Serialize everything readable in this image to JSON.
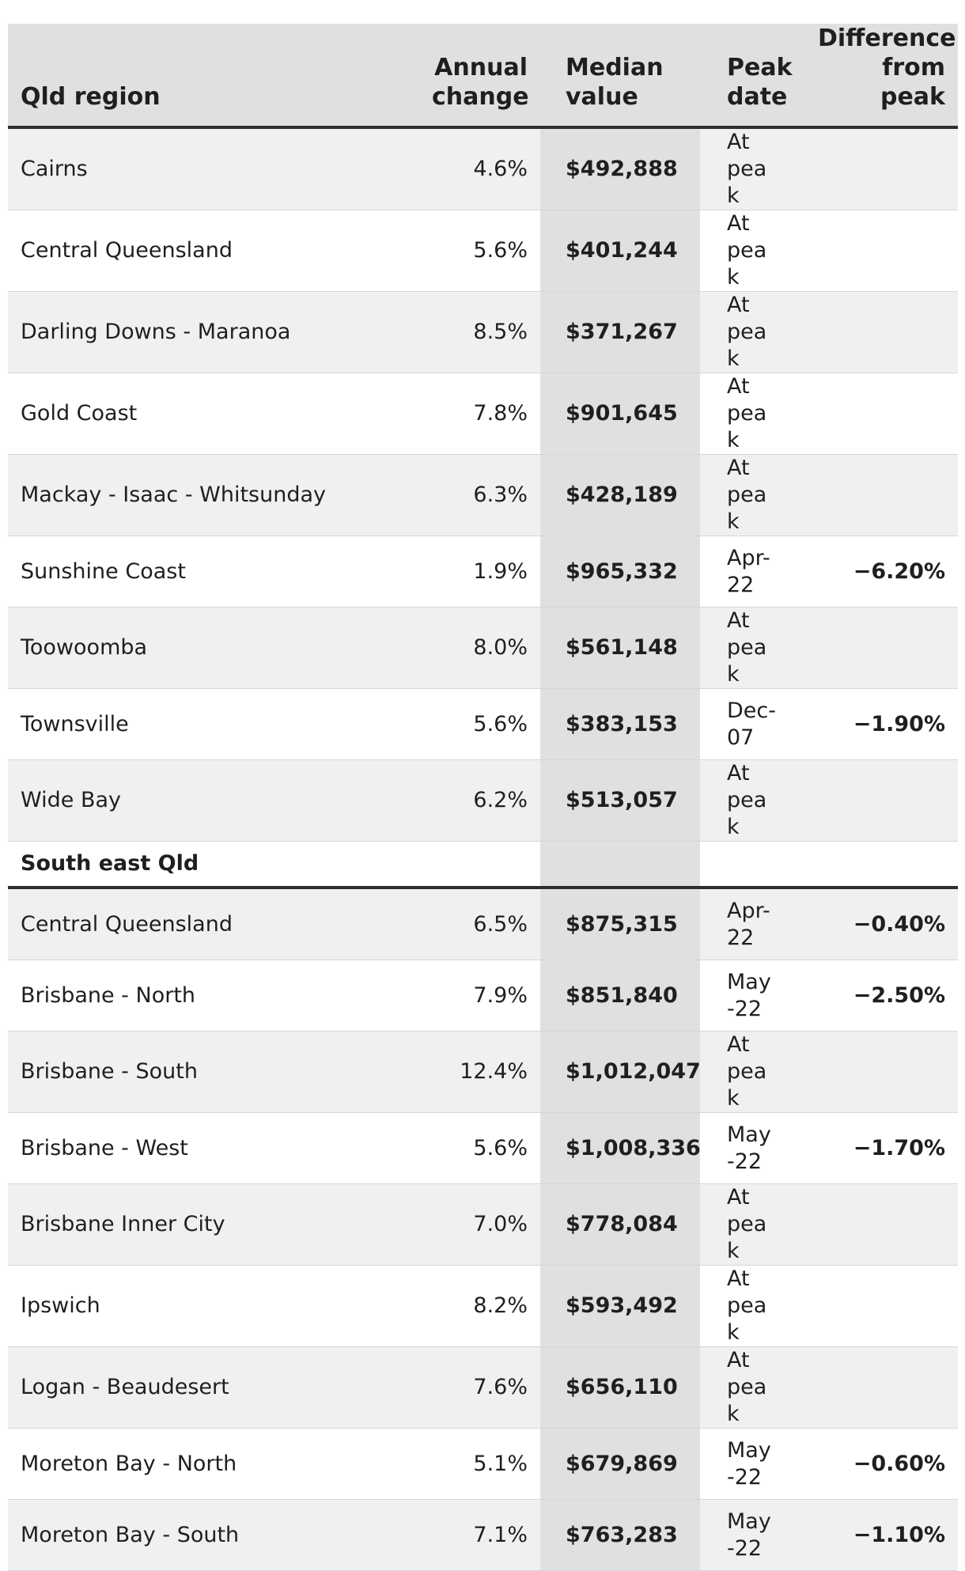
{
  "chart_data": {
    "type": "table",
    "columns": [
      "Qld region",
      "Annual change",
      "Median value",
      "Peak date",
      "Difference from peak"
    ],
    "groups": [
      {
        "heading": "",
        "rows": [
          {
            "region": "Cairns",
            "change": "4.6%",
            "median": "$492,888",
            "peak": "At peak",
            "diff": ""
          },
          {
            "region": "Central Queensland",
            "change": "5.6%",
            "median": "$401,244",
            "peak": "At peak",
            "diff": ""
          },
          {
            "region": "Darling Downs - Maranoa",
            "change": "8.5%",
            "median": "$371,267",
            "peak": "At peak",
            "diff": ""
          },
          {
            "region": "Gold Coast",
            "change": "7.8%",
            "median": "$901,645",
            "peak": "At peak",
            "diff": ""
          },
          {
            "region": "Mackay - Isaac - Whitsunday",
            "change": "6.3%",
            "median": "$428,189",
            "peak": "At peak",
            "diff": ""
          },
          {
            "region": "Sunshine Coast",
            "change": "1.9%",
            "median": "$965,332",
            "peak": "Apr-22",
            "diff": "−6.20%"
          },
          {
            "region": "Toowoomba",
            "change": "8.0%",
            "median": "$561,148",
            "peak": "At peak",
            "diff": ""
          },
          {
            "region": "Townsville",
            "change": "5.6%",
            "median": "$383,153",
            "peak": "Dec-07",
            "diff": "−1.90%"
          },
          {
            "region": "Wide Bay",
            "change": "6.2%",
            "median": "$513,057",
            "peak": "At peak",
            "diff": ""
          }
        ]
      },
      {
        "heading": "South east Qld",
        "rows": [
          {
            "region": "Central Queensland",
            "change": "6.5%",
            "median": "$875,315",
            "peak": "Apr-22",
            "diff": "−0.40%"
          },
          {
            "region": "Brisbane - North",
            "change": "7.9%",
            "median": "$851,840",
            "peak": "May-22",
            "diff": "−2.50%"
          },
          {
            "region": "Brisbane - South",
            "change": "12.4%",
            "median": "$1,012,047",
            "peak": "At peak",
            "diff": ""
          },
          {
            "region": "Brisbane - West",
            "change": "5.6%",
            "median": "$1,008,336",
            "peak": "May-22",
            "diff": "−1.70%"
          },
          {
            "region": "Brisbane Inner City",
            "change": "7.0%",
            "median": "$778,084",
            "peak": "At peak",
            "diff": ""
          },
          {
            "region": "Ipswich",
            "change": "8.2%",
            "median": "$593,492",
            "peak": "At peak",
            "diff": ""
          },
          {
            "region": "Logan - Beaudesert",
            "change": "7.6%",
            "median": "$656,110",
            "peak": "At peak",
            "diff": ""
          },
          {
            "region": "Moreton Bay - North",
            "change": "5.1%",
            "median": "$679,869",
            "peak": "May-22",
            "diff": "−0.60%"
          },
          {
            "region": "Moreton Bay - South",
            "change": "7.1%",
            "median": "$763,283",
            "peak": "May-22",
            "diff": "−1.10%"
          }
        ]
      }
    ]
  }
}
